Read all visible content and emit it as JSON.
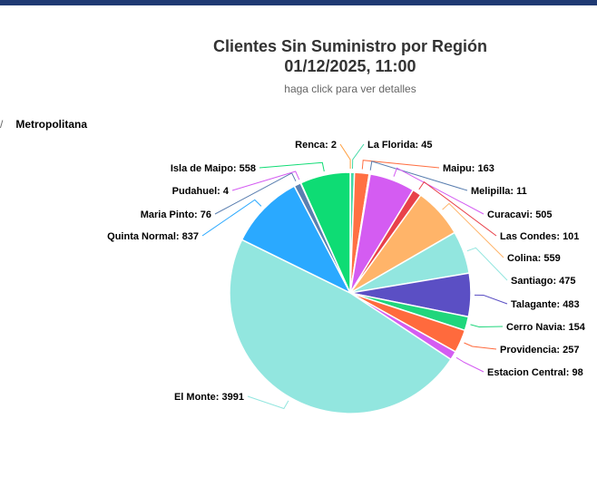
{
  "header": {
    "title_line1": "Clientes Sin Suministro por Región",
    "title_line2": "01/12/2025, 11:00",
    "subtitle": "haga click para ver detalles"
  },
  "breadcrumb": {
    "separator": "/",
    "region": "Metropolitana"
  },
  "chart_data": {
    "type": "pie",
    "title": "Clientes Sin Suministro por Región",
    "subtitle": "01/12/2025, 11:00",
    "slices": [
      {
        "name": "Renca",
        "value": 2,
        "color": "#ff9f40"
      },
      {
        "name": "La Florida",
        "value": 45,
        "color": "#41d9a6"
      },
      {
        "name": "Maipu",
        "value": 163,
        "color": "#ff7043"
      },
      {
        "name": "Melipilla",
        "value": 11,
        "color": "#5a7fb0"
      },
      {
        "name": "Curacavi",
        "value": 505,
        "color": "#d45cf2"
      },
      {
        "name": "Las Condes",
        "value": 101,
        "color": "#e8414a"
      },
      {
        "name": "Colina",
        "value": 559,
        "color": "#ffb469"
      },
      {
        "name": "Santiago",
        "value": 475,
        "color": "#92e6df"
      },
      {
        "name": "Talagante",
        "value": 483,
        "color": "#5b4fc4"
      },
      {
        "name": "Cerro Navia",
        "value": 154,
        "color": "#1fd67c"
      },
      {
        "name": "Providencia",
        "value": 257,
        "color": "#ff6a3d"
      },
      {
        "name": "Estacion Central",
        "value": 98,
        "color": "#d45cf2"
      },
      {
        "name": "El Monte",
        "value": 3991,
        "color": "#92e6df"
      },
      {
        "name": "Quinta Normal",
        "value": 837,
        "color": "#2aa9ff"
      },
      {
        "name": "Maria Pinto",
        "value": 76,
        "color": "#5a7fb0"
      },
      {
        "name": "Pudahuel",
        "value": 4,
        "color": "#d45cf2"
      },
      {
        "name": "Isla de Maipo",
        "value": 558,
        "color": "#0edc74"
      }
    ]
  }
}
